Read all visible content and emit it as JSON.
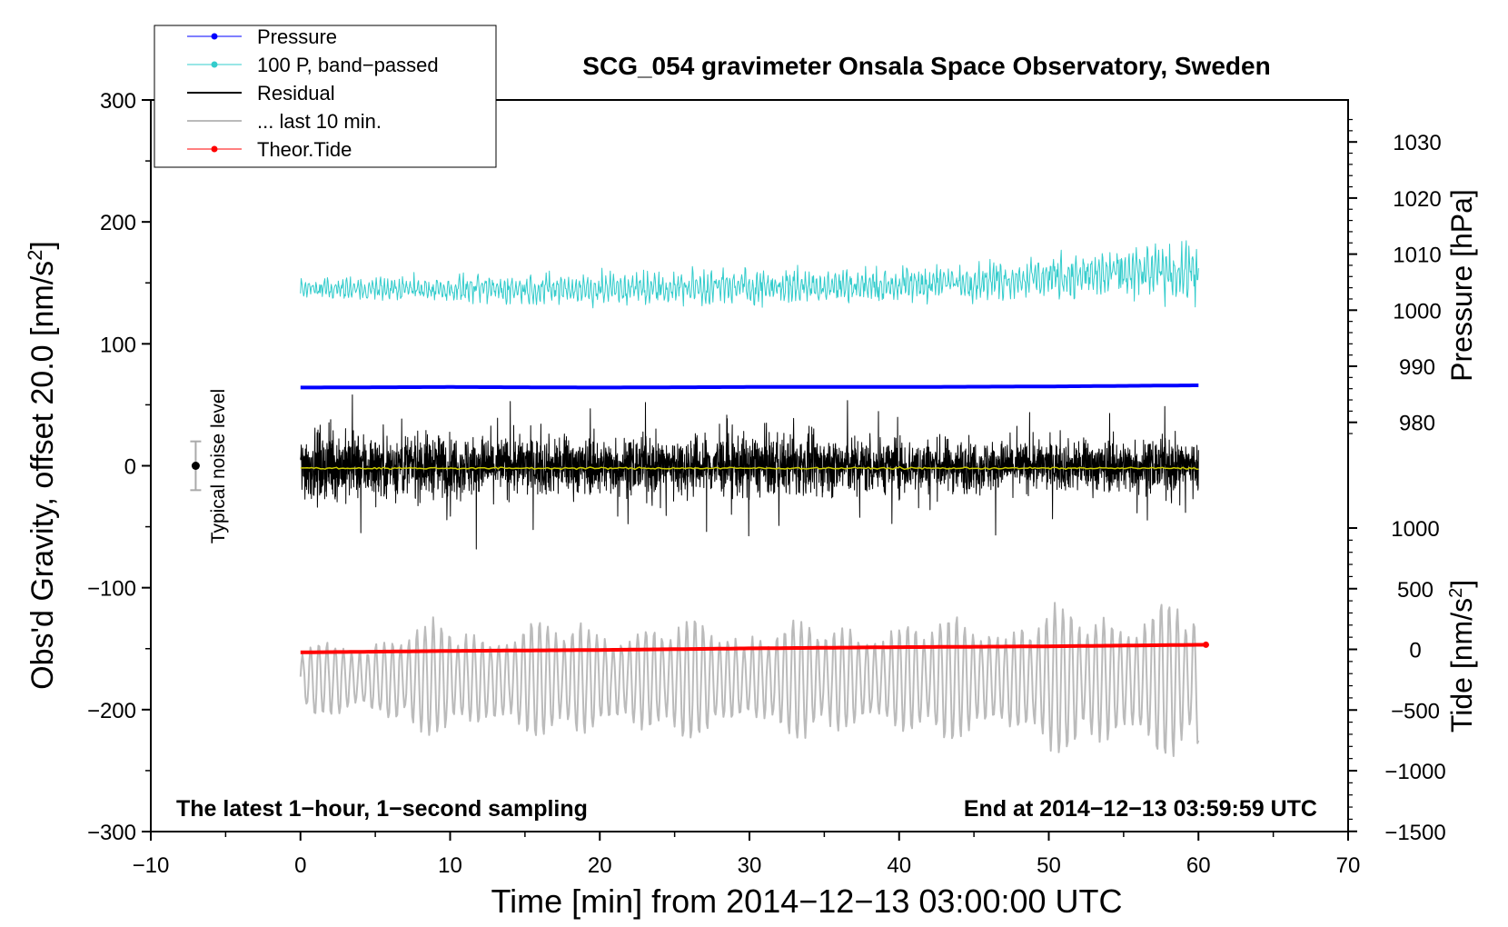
{
  "chart_data": {
    "type": "line",
    "title": "SCG_054 gravimeter Onsala Space Observatory, Sweden",
    "xlabel": "Time [min] from 2014−12−13 03:00:00 UTC",
    "ylabel": "Obs'd Gravity, offset 20.0 [nm/s",
    "ylabel_sup": "2",
    "ylabel_close": "]",
    "xlim": [
      -10,
      70
    ],
    "ylim": [
      -300,
      300
    ],
    "x_ticks": [
      -10,
      0,
      10,
      20,
      30,
      40,
      50,
      60,
      70
    ],
    "x_tick_labels": [
      "−10",
      "0",
      "10",
      "20",
      "30",
      "40",
      "50",
      "60",
      "70"
    ],
    "y_ticks": [
      -300,
      -200,
      -100,
      0,
      100,
      200,
      300
    ],
    "y_tick_labels": [
      "−300",
      "−200",
      "−100",
      "0",
      "100",
      "200",
      "300"
    ],
    "pressure_axis": {
      "label": "Pressure [hPa]",
      "ticks": [
        980,
        990,
        1000,
        1010,
        1020,
        1030
      ],
      "tick_labels": [
        "980",
        "990",
        "1000",
        "1010",
        "1020",
        "1030"
      ]
    },
    "tide_axis": {
      "label": "Tide [nm/s",
      "label_sup": "2",
      "label_close": "]",
      "ticks": [
        -1500,
        -1000,
        -500,
        0,
        500,
        1000
      ],
      "tick_labels": [
        "−1500",
        "−1000",
        "−500",
        "0",
        "500",
        "1000"
      ]
    },
    "series": [
      {
        "name": "Pressure",
        "color": "#0000ff",
        "x": [
          0,
          10,
          20,
          30,
          40,
          50,
          60
        ],
        "values": [
          986.2,
          986.3,
          986.2,
          986.3,
          986.3,
          986.4,
          986.6
        ],
        "units": "hPa"
      },
      {
        "name": "100 P, band−passed",
        "color": "#33cccc",
        "x": [
          0,
          10,
          20,
          30,
          40,
          50,
          60
        ],
        "values": [
          145,
          145,
          145,
          147,
          148,
          155,
          160
        ],
        "amplitude": [
          8,
          10,
          12,
          14,
          13,
          16,
          24
        ],
        "units": "nm/s2"
      },
      {
        "name": "Residual",
        "color": "#000000",
        "x": [
          0,
          10,
          20,
          30,
          40,
          50,
          60
        ],
        "values": [
          0,
          0,
          0,
          0,
          0,
          0,
          0
        ],
        "amplitude": [
          50,
          45,
          40,
          45,
          40,
          35,
          40
        ],
        "units": "nm/s2"
      },
      {
        "name": "... last 10 min.",
        "color": "#bbbbbb",
        "x": [
          0,
          10,
          20,
          30,
          40,
          50,
          60
        ],
        "values": [
          -175,
          -175,
          -175,
          -175,
          -175,
          -175,
          -175
        ],
        "amplitude": [
          30,
          50,
          50,
          50,
          50,
          60,
          70
        ],
        "units": "nm/s2"
      },
      {
        "name": "Theor.Tide",
        "color": "#ff0000",
        "x": [
          0,
          10,
          20,
          30,
          40,
          50,
          60.5
        ],
        "values": [
          -25,
          -13,
          -5,
          8,
          18,
          25,
          38
        ],
        "units": "nm/s2"
      }
    ],
    "mean_line": {
      "color": "#cccc00",
      "value": -2
    },
    "noise_bar": {
      "label": "Typical noise level",
      "x": -7,
      "center": 0,
      "half_range": 20
    },
    "annotations": {
      "bottom_left": "The latest 1−hour, 1−second sampling",
      "bottom_right": "End at 2014−12−13 03:59:59 UTC"
    },
    "legend_position": "top-left",
    "grid": false
  }
}
